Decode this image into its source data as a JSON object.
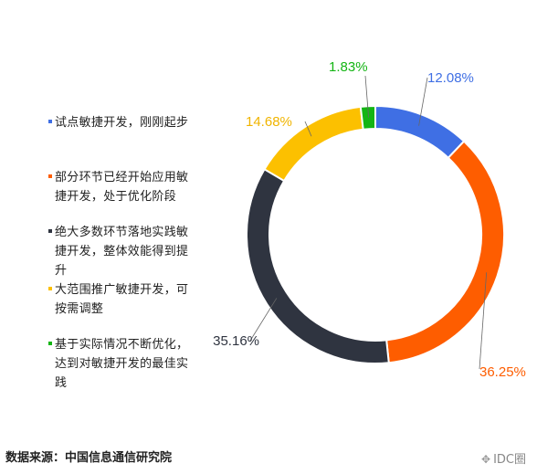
{
  "chart_data": {
    "type": "pie",
    "style": "donut",
    "categories": [
      "试点敏捷开发，刚刚起步",
      "部分环节已经开始应用敏捷开发，处于优化阶段",
      "绝大多数环节落地实践敏捷开发，整体效能得到提升",
      "大范围推广敏捷开发，可按需调整",
      "基于实际情况不断优化，达到对敏捷开发的最佳实践"
    ],
    "values": [
      12.08,
      36.25,
      35.16,
      14.68,
      1.83
    ],
    "value_labels": [
      "12.08%",
      "36.25%",
      "35.16%",
      "14.68%",
      "1.83%"
    ],
    "colors": [
      "#3f6fe4",
      "#fe5d00",
      "#2f3440",
      "#fcc000",
      "#14b514"
    ],
    "legend_placement": "left"
  },
  "legend": {
    "items": [
      {
        "lines": [
          "试点敏捷开发，刚刚起步"
        ]
      },
      {
        "lines": [
          "部分环节已经开始应用敏",
          "捷开发，处于优化阶段"
        ]
      },
      {
        "lines": [
          "绝大多数环节落地实践敏",
          "捷开发，整体效能得到提",
          "升"
        ]
      },
      {
        "lines": [
          "大范围推广敏捷开发，可",
          "按需调整"
        ]
      },
      {
        "lines": [
          "基于实际情况不断优化，",
          "达到对敏捷开发的最佳实",
          "践"
        ]
      }
    ]
  },
  "footer": {
    "source": "数据来源：中国信息通信研究院",
    "watermark": "IDC圈",
    "watermark_icon": "wechat-icon"
  }
}
